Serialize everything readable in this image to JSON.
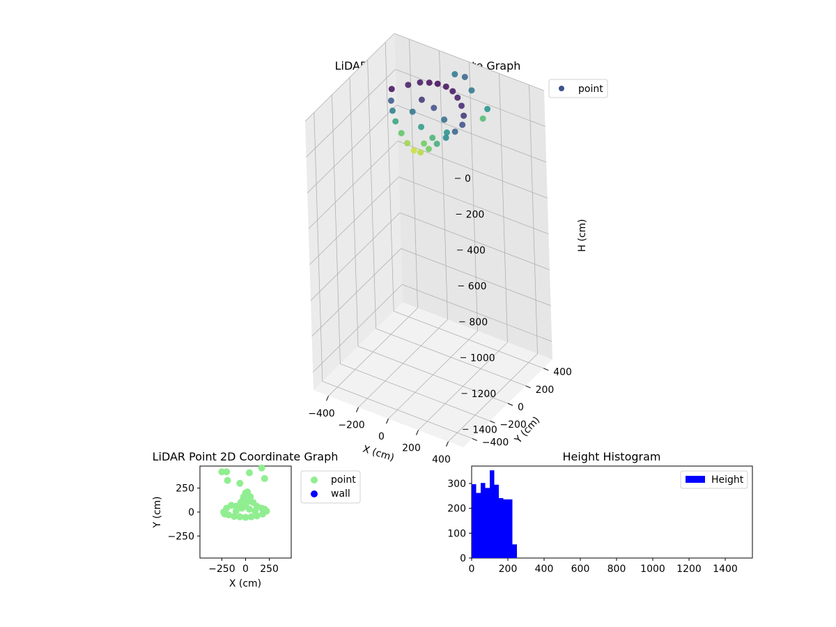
{
  "charts": {
    "scatter3d": {
      "title": "LiDAR Point 3D Coordinate Graph",
      "legend": [
        "point"
      ],
      "xlabel": "X (cm)",
      "ylabel": "Y (cm)",
      "zlabel": "H (cm)"
    },
    "scatter2d": {
      "title": "LiDAR Point 2D Coordinate Graph",
      "legend": [
        "point",
        "wall"
      ],
      "xlabel": "X (cm)",
      "ylabel": "Y (cm)"
    },
    "hist": {
      "title": "Height Histogram",
      "legend": [
        "Height"
      ]
    }
  },
  "colors": {
    "point_2d": "#90ee90",
    "wall": "#0000ff",
    "hist_bar": "#0000ff",
    "point_3d_low": "#440154",
    "point_3d_mid": "#21918c",
    "point_3d_high": "#fde725"
  },
  "chart_data": [
    {
      "type": "scatter",
      "subtype": "3d",
      "title": "LiDAR Point 3D Coordinate Graph",
      "xlabel": "X (cm)",
      "ylabel": "Y (cm)",
      "zlabel": "H (cm)",
      "xlim": [
        -500,
        500
      ],
      "ylim": [
        -500,
        500
      ],
      "zlim": [
        1500,
        0
      ],
      "xticks": [
        -400,
        -200,
        0,
        200,
        400
      ],
      "yticks": [
        -400,
        -200,
        0,
        200,
        400
      ],
      "zticks": [
        0,
        200,
        400,
        600,
        800,
        1000,
        1200,
        1400
      ],
      "colormap": "viridis (by height)",
      "grid": true,
      "legend_position": "upper right",
      "series": [
        {
          "name": "point",
          "points": [
            [
              -250,
              50,
              10
            ],
            [
              -200,
              150,
              20
            ],
            [
              -150,
              200,
              15
            ],
            [
              -100,
              220,
              10
            ],
            [
              -50,
              230,
              5
            ],
            [
              0,
              240,
              10
            ],
            [
              50,
              230,
              15
            ],
            [
              100,
              200,
              20
            ],
            [
              150,
              160,
              30
            ],
            [
              200,
              100,
              40
            ],
            [
              220,
              50,
              60
            ],
            [
              200,
              0,
              80
            ],
            [
              150,
              -20,
              120
            ],
            [
              100,
              -40,
              160
            ],
            [
              50,
              -50,
              200
            ],
            [
              0,
              -60,
              230
            ],
            [
              -50,
              -50,
              240
            ],
            [
              -100,
              -40,
              220
            ],
            [
              -150,
              -20,
              190
            ],
            [
              -200,
              0,
              150
            ],
            [
              -230,
              20,
              110
            ],
            [
              -250,
              40,
              70
            ],
            [
              -80,
              100,
              40
            ],
            [
              0,
              100,
              60
            ],
            [
              80,
              80,
              90
            ],
            [
              -40,
              20,
              140
            ],
            [
              40,
              10,
              170
            ],
            [
              0,
              -20,
              200
            ],
            [
              120,
              40,
              130
            ],
            [
              -120,
              60,
              100
            ],
            [
              -100,
              500,
              100
            ],
            [
              -20,
              480,
              80
            ],
            [
              60,
              420,
              100
            ],
            [
              200,
              360,
              130
            ],
            [
              180,
              340,
              180
            ]
          ]
        }
      ]
    },
    {
      "type": "scatter",
      "title": "LiDAR Point 2D Coordinate Graph",
      "xlabel": "X (cm)",
      "ylabel": "Y (cm)",
      "xlim": [
        -480,
        480
      ],
      "ylim": [
        -480,
        480
      ],
      "xticks": [
        -250,
        0,
        250
      ],
      "yticks": [
        -250,
        0,
        250
      ],
      "legend_position": "outside right",
      "series": [
        {
          "name": "point",
          "points": [
            [
              -250,
              420
            ],
            [
              -200,
              420
            ],
            [
              -190,
              330
            ],
            [
              -60,
              300
            ],
            [
              40,
              410
            ],
            [
              170,
              460
            ],
            [
              200,
              350
            ],
            [
              -230,
              0
            ],
            [
              -200,
              40
            ],
            [
              -150,
              70
            ],
            [
              -100,
              60
            ],
            [
              -50,
              100
            ],
            [
              -20,
              160
            ],
            [
              0,
              200
            ],
            [
              20,
              210
            ],
            [
              50,
              160
            ],
            [
              80,
              100
            ],
            [
              120,
              60
            ],
            [
              170,
              40
            ],
            [
              200,
              30
            ],
            [
              220,
              10
            ],
            [
              180,
              -20
            ],
            [
              120,
              -40
            ],
            [
              60,
              -50
            ],
            [
              0,
              -55
            ],
            [
              -60,
              -50
            ],
            [
              -120,
              -45
            ],
            [
              -180,
              -30
            ],
            [
              -220,
              -20
            ],
            [
              -100,
              10
            ],
            [
              -40,
              40
            ],
            [
              40,
              30
            ],
            [
              100,
              10
            ],
            [
              0,
              60
            ],
            [
              -30,
              120
            ],
            [
              30,
              110
            ]
          ]
        },
        {
          "name": "wall",
          "points": []
        }
      ]
    },
    {
      "type": "bar",
      "subtype": "histogram",
      "title": "Height Histogram",
      "xlim": [
        0,
        1550
      ],
      "ylim": [
        0,
        370
      ],
      "xticks": [
        0,
        200,
        400,
        600,
        800,
        1000,
        1200,
        1400
      ],
      "yticks": [
        0,
        100,
        200,
        300
      ],
      "legend_position": "upper right",
      "series": [
        {
          "name": "Height",
          "bin_edges": [
            0,
            25,
            50,
            75,
            100,
            125,
            150,
            175,
            200,
            225,
            250,
            262
          ],
          "values": [
            297,
            262,
            302,
            282,
            353,
            295,
            241,
            236,
            236,
            55,
            0
          ]
        }
      ]
    }
  ]
}
